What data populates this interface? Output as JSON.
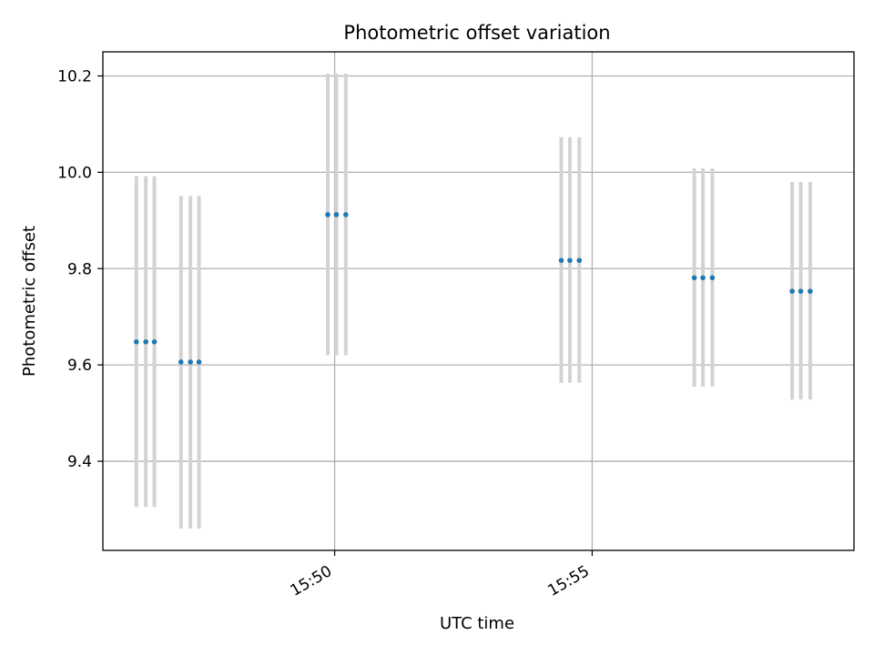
{
  "chart_data": {
    "type": "scatter",
    "title": "Photometric offset variation",
    "xlabel": "UTC time",
    "ylabel": "Photometric offset",
    "x_axis": {
      "kind": "time",
      "range": [
        "15:45:30",
        "16:00:05"
      ],
      "ticks": [
        {
          "value": "15:50:00",
          "label": "15:50"
        },
        {
          "value": "15:55:00",
          "label": "15:55"
        }
      ]
    },
    "y_axis": {
      "range": [
        9.215,
        10.25
      ],
      "ticks": [
        9.4,
        9.6,
        9.8,
        10.0,
        10.2
      ]
    },
    "grid": true,
    "colors": {
      "points": "#1f77b4",
      "error_bars": "#d3d3d3",
      "grid": "#b0b0b0",
      "axes": "#000000"
    },
    "points": [
      {
        "time": "15:46:09",
        "y": 9.648,
        "ylow": 9.305,
        "yhigh": 9.992
      },
      {
        "time": "15:46:20",
        "y": 9.648,
        "ylow": 9.305,
        "yhigh": 9.992
      },
      {
        "time": "15:46:30",
        "y": 9.648,
        "ylow": 9.305,
        "yhigh": 9.992
      },
      {
        "time": "15:47:01",
        "y": 9.606,
        "ylow": 9.26,
        "yhigh": 9.951
      },
      {
        "time": "15:47:12",
        "y": 9.606,
        "ylow": 9.26,
        "yhigh": 9.951
      },
      {
        "time": "15:47:22",
        "y": 9.606,
        "ylow": 9.26,
        "yhigh": 9.951
      },
      {
        "time": "15:49:52",
        "y": 9.912,
        "ylow": 9.62,
        "yhigh": 10.205
      },
      {
        "time": "15:50:02",
        "y": 9.912,
        "ylow": 9.62,
        "yhigh": 10.205
      },
      {
        "time": "15:50:13",
        "y": 9.912,
        "ylow": 9.62,
        "yhigh": 10.205
      },
      {
        "time": "15:54:24",
        "y": 9.817,
        "ylow": 9.563,
        "yhigh": 10.073
      },
      {
        "time": "15:54:34",
        "y": 9.817,
        "ylow": 9.563,
        "yhigh": 10.073
      },
      {
        "time": "15:54:45",
        "y": 9.817,
        "ylow": 9.563,
        "yhigh": 10.073
      },
      {
        "time": "15:56:59",
        "y": 9.781,
        "ylow": 9.555,
        "yhigh": 10.008
      },
      {
        "time": "15:57:09",
        "y": 9.781,
        "ylow": 9.555,
        "yhigh": 10.008
      },
      {
        "time": "15:57:20",
        "y": 9.781,
        "ylow": 9.555,
        "yhigh": 10.008
      },
      {
        "time": "15:58:53",
        "y": 9.753,
        "ylow": 9.528,
        "yhigh": 9.98
      },
      {
        "time": "15:59:03",
        "y": 9.753,
        "ylow": 9.528,
        "yhigh": 9.98
      },
      {
        "time": "15:59:14",
        "y": 9.753,
        "ylow": 9.528,
        "yhigh": 9.98
      }
    ]
  }
}
